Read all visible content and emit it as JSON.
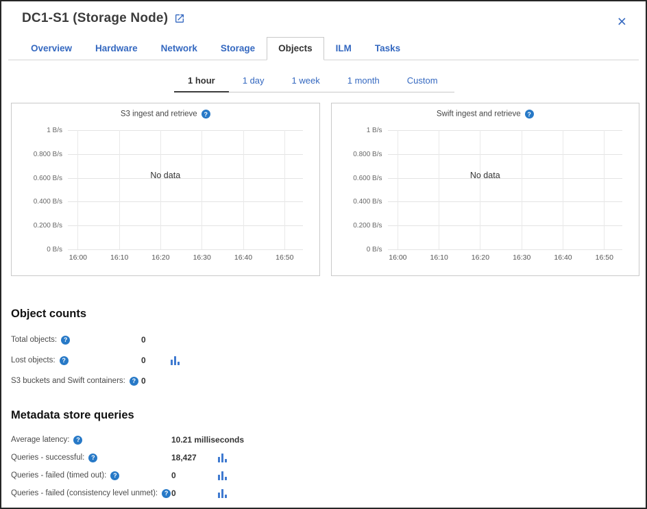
{
  "window": {
    "title": "DC1-S1 (Storage Node)"
  },
  "icons": {
    "help": "?",
    "close": "×"
  },
  "colors": {
    "link_blue": "#3468c0",
    "help_blue": "#2779c7",
    "bar_icon_blue": "#3f7ad0"
  },
  "tabs": [
    {
      "label": "Overview"
    },
    {
      "label": "Hardware"
    },
    {
      "label": "Network"
    },
    {
      "label": "Storage"
    },
    {
      "label": "Objects",
      "active": true
    },
    {
      "label": "ILM"
    },
    {
      "label": "Tasks"
    }
  ],
  "time_ranges": [
    {
      "label": "1 hour",
      "active": true
    },
    {
      "label": "1 day"
    },
    {
      "label": "1 week"
    },
    {
      "label": "1 month"
    },
    {
      "label": "Custom"
    }
  ],
  "charts": [
    {
      "title": "S3 ingest and retrieve",
      "no_data": "No data",
      "type": "line",
      "series": [],
      "y_axis": {
        "ticks": [
          "1 B/s",
          "0.800 B/s",
          "0.600 B/s",
          "0.400 B/s",
          "0.200 B/s",
          "0 B/s"
        ],
        "range": [
          0,
          1
        ]
      },
      "x_axis": {
        "ticks": [
          "16:00",
          "16:10",
          "16:20",
          "16:30",
          "16:40",
          "16:50"
        ]
      }
    },
    {
      "title": "Swift ingest and retrieve",
      "no_data": "No data",
      "type": "line",
      "series": [],
      "y_axis": {
        "ticks": [
          "1 B/s",
          "0.800 B/s",
          "0.600 B/s",
          "0.400 B/s",
          "0.200 B/s",
          "0 B/s"
        ],
        "range": [
          0,
          1
        ]
      },
      "x_axis": {
        "ticks": [
          "16:00",
          "16:10",
          "16:20",
          "16:30",
          "16:40",
          "16:50"
        ]
      }
    }
  ],
  "object_counts": {
    "title": "Object counts",
    "rows": [
      {
        "label": "Total objects:",
        "value": "0",
        "chart_icon": false
      },
      {
        "label": "Lost objects:",
        "value": "0",
        "chart_icon": true
      },
      {
        "label": "S3 buckets and Swift containers:",
        "value": "0",
        "chart_icon": false
      }
    ]
  },
  "metadata_queries": {
    "title": "Metadata store queries",
    "rows": [
      {
        "label": "Average latency:",
        "value": "10.21 milliseconds",
        "chart_icon": false
      },
      {
        "label": "Queries - successful:",
        "value": "18,427",
        "chart_icon": true
      },
      {
        "label": "Queries - failed (timed out):",
        "value": "0",
        "chart_icon": true
      },
      {
        "label": "Queries - failed (consistency level unmet):",
        "value": "0",
        "chart_icon": true
      }
    ]
  }
}
